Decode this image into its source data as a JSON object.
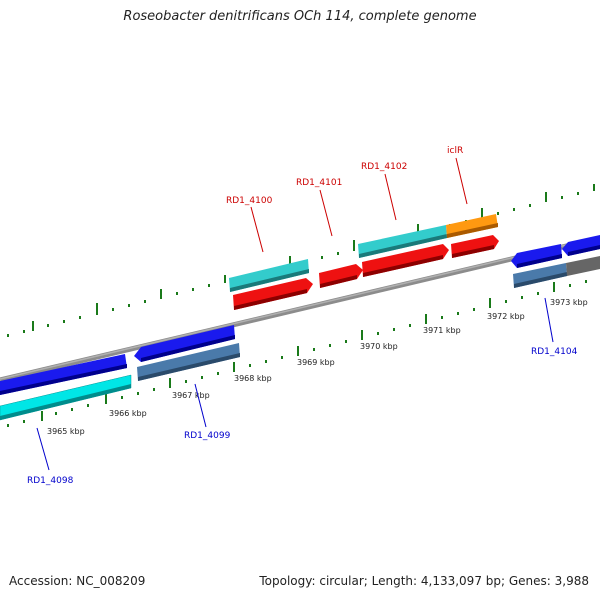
{
  "title": "Roseobacter denitrificans OCh 114, complete genome",
  "footer": {
    "accession": "Accession: NC_008209",
    "stats": "Topology: circular; Length: 4,133,097 bp; Genes: 3,988"
  },
  "kbp_labels": [
    "3965 kbp",
    "3966 kbp",
    "3967 kbp",
    "3968 kbp",
    "3969 kbp",
    "3970 kbp",
    "3971 kbp",
    "3972 kbp",
    "3973 kbp"
  ],
  "gene_labels": {
    "rd1_4098": "RD1_4098",
    "rd1_4099": "RD1_4099",
    "rd1_4100": "RD1_4100",
    "rd1_4101": "RD1_4101",
    "rd1_4102": "RD1_4102",
    "iclr": "iclR",
    "rd1_4104": "RD1_4104"
  },
  "colors": {
    "forward_label": "#cc0000",
    "reverse_label": "#0000cc",
    "tick": "#1a7a1a",
    "backbone": "#888888",
    "cyan": "#00cccc",
    "blue": "#0000ee",
    "red": "#ee0000",
    "orange": "#ff9900",
    "steel": "#4a7aaa",
    "gray": "#666666"
  }
}
